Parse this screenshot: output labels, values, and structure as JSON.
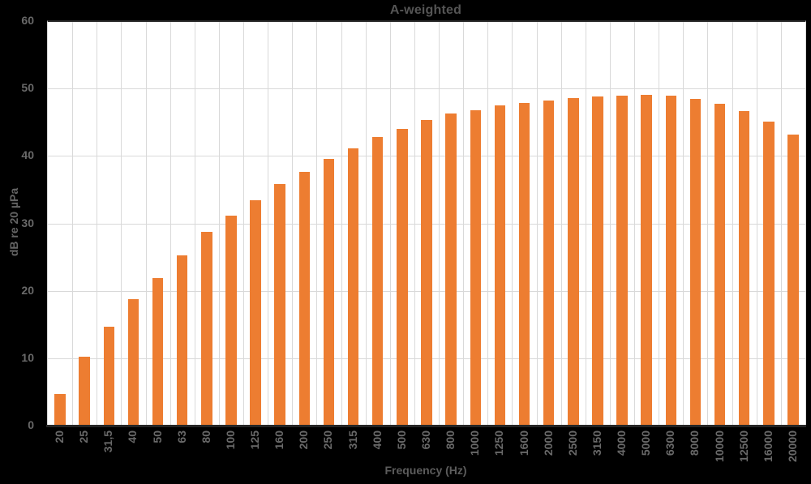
{
  "chart_data": {
    "type": "bar",
    "title": "A-weighted",
    "xlabel": "Frequency (Hz)",
    "ylabel": "dB re 20 µPa",
    "categories": [
      "20",
      "25",
      "31,5",
      "40",
      "50",
      "63",
      "80",
      "100",
      "125",
      "160",
      "200",
      "250",
      "315",
      "400",
      "500",
      "630",
      "800",
      "1000",
      "1250",
      "1600",
      "2000",
      "2500",
      "3150",
      "4000",
      "5000",
      "6300",
      "8000",
      "10000",
      "12500",
      "16000",
      "20000"
    ],
    "values": [
      4.8,
      10.3,
      14.8,
      18.9,
      22.0,
      25.4,
      28.8,
      31.3,
      33.6,
      35.9,
      37.8,
      39.7,
      41.3,
      42.9,
      44.1,
      45.4,
      46.4,
      46.9,
      47.6,
      48.0,
      48.3,
      48.7,
      48.9,
      49.0,
      49.2,
      49.0,
      48.6,
      47.8,
      46.8,
      45.2,
      43.3
    ],
    "ylim": [
      0,
      60
    ],
    "yticks": [
      0,
      10,
      20,
      30,
      40,
      50,
      60
    ],
    "x_tick_rotation_deg": 90,
    "grid": "major horizontal and vertical gridlines on",
    "legend": "none",
    "colors": {
      "bar": "#ED7D31",
      "page_background": "#000000",
      "plot_background": "#FFFFFF",
      "gridline": "#D9D9D9",
      "axis_line": "#262626",
      "text": "#646464"
    }
  }
}
